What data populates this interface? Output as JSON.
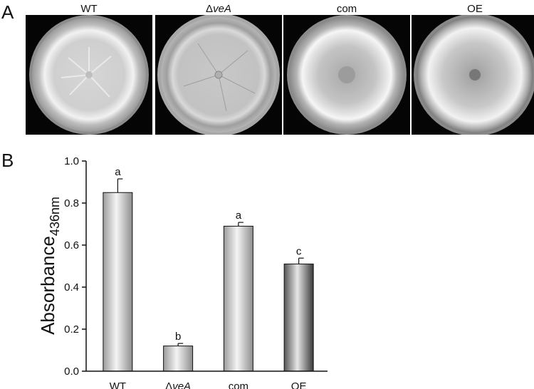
{
  "panels": {
    "a": "A",
    "b": "B"
  },
  "plates": [
    {
      "delta": "",
      "label": "WT"
    },
    {
      "delta": "Δ",
      "label": "veA"
    },
    {
      "delta": "",
      "label": "com"
    },
    {
      "delta": "",
      "label": "OE"
    }
  ],
  "chart_data": {
    "type": "bar",
    "categories": [
      "WT",
      "ΔveA",
      "com",
      "OE"
    ],
    "values": [
      0.85,
      0.12,
      0.69,
      0.51
    ],
    "errors": [
      0.065,
      0.012,
      0.018,
      0.028
    ],
    "significance": [
      "a",
      "b",
      "a",
      "c"
    ],
    "ylabel": "Absorbance",
    "ylabel_subscript": "436nm",
    "ylim": [
      0.0,
      1.0
    ],
    "yticks": [
      "0.0",
      "0.2",
      "0.4",
      "0.6",
      "0.8",
      "1.0"
    ],
    "bar_colors": [
      "#d9d9d9",
      "#d9d9d9",
      "#d9d9d9",
      "#2a2a2a"
    ],
    "grid": false,
    "legend": "none"
  }
}
